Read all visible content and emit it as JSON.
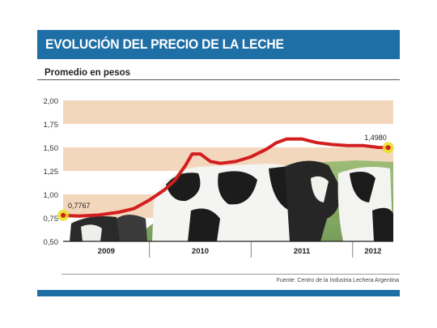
{
  "header": {
    "title": "EVOLUCIÓN DEL PRECIO DE LA LECHE"
  },
  "subtitle": "Promedio en pesos",
  "source": "Fuente: Centro de la Industria Lechera Argentina",
  "colors": {
    "header_bg": "#1e6fa6",
    "line": "#d21e1e",
    "band": "#f3d7bd",
    "marker": "#e8e020"
  },
  "chart_data": {
    "type": "line",
    "title": "EVOLUCIÓN DEL PRECIO DE LA LECHE",
    "subtitle": "Promedio en pesos",
    "xlabel": "",
    "ylabel": "",
    "ylim": [
      0.5,
      2.0
    ],
    "y_ticks": [
      "2,00",
      "1,75",
      "1,50",
      "1,25",
      "1,00",
      "0,75",
      "0,50"
    ],
    "y_tick_values": [
      2.0,
      1.75,
      1.5,
      1.25,
      1.0,
      0.75,
      0.5
    ],
    "categories": [
      "2009",
      "2010",
      "2011",
      "2012"
    ],
    "x_range": [
      2009.0,
      2012.25
    ],
    "series": [
      {
        "x": [
          2009.0,
          2009.15,
          2009.35,
          2009.55,
          2009.7,
          2009.85,
          2010.0,
          2010.1,
          2010.2,
          2010.27,
          2010.35,
          2010.45,
          2010.55,
          2010.7,
          2010.85,
          2011.0,
          2011.1,
          2011.2,
          2011.35,
          2011.5,
          2011.65,
          2011.8,
          2011.95,
          2012.1,
          2012.2
        ],
        "y": [
          0.7767,
          0.77,
          0.78,
          0.81,
          0.85,
          0.94,
          1.05,
          1.15,
          1.3,
          1.43,
          1.43,
          1.35,
          1.33,
          1.35,
          1.4,
          1.48,
          1.55,
          1.59,
          1.59,
          1.55,
          1.53,
          1.52,
          1.52,
          1.5,
          1.498
        ]
      }
    ],
    "annotations": [
      {
        "x": 2009.0,
        "y": 0.7767,
        "label": "0,7767"
      },
      {
        "x": 2012.2,
        "y": 1.498,
        "label": "1,4980"
      }
    ]
  }
}
